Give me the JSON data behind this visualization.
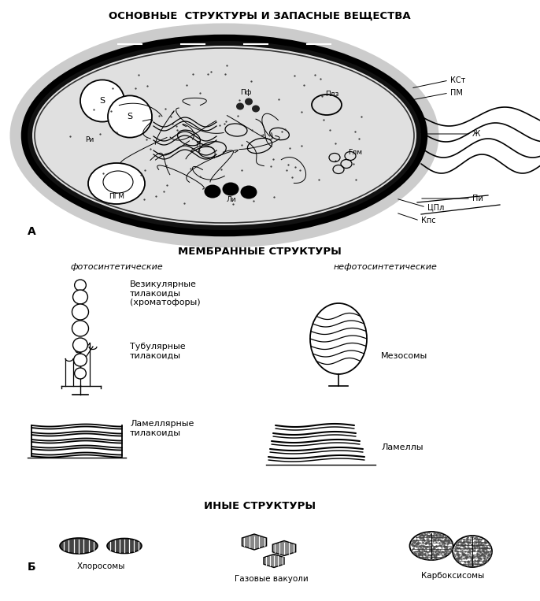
{
  "title_top": "ОСНОВНЫЕ  СТРУКТУРЫ И ЗАПАСНЫЕ ВЕЩЕСТВА",
  "title_membrane": "МЕМБРАННЫЕ СТРУКТУРЫ",
  "title_other": "ИНЫЕ СТРУКТУРЫ",
  "label_photosynthetic": "фотосинтетические",
  "label_nonphotosynthetic": "нефотосинтетические",
  "label_vesicular": "Везикулярные\nтилакоиды\n(хроматофоры)",
  "label_tubular": "Тубулярные\nтилакоиды",
  "label_lamellar_left": "Ламеллярные\nтилакоиды",
  "label_mesosomes": "Мезосомы",
  "label_lamellae": "Ламеллы",
  "label_chlorosomes": "Хлоросомы",
  "label_gas_vacuoles": "Газовые вакуоли",
  "label_carboxysomes": "Карбоксисомы",
  "bg_color": "#ffffff",
  "line_color": "#000000",
  "text_color": "#000000",
  "fig_width": 6.86,
  "fig_height": 7.63
}
